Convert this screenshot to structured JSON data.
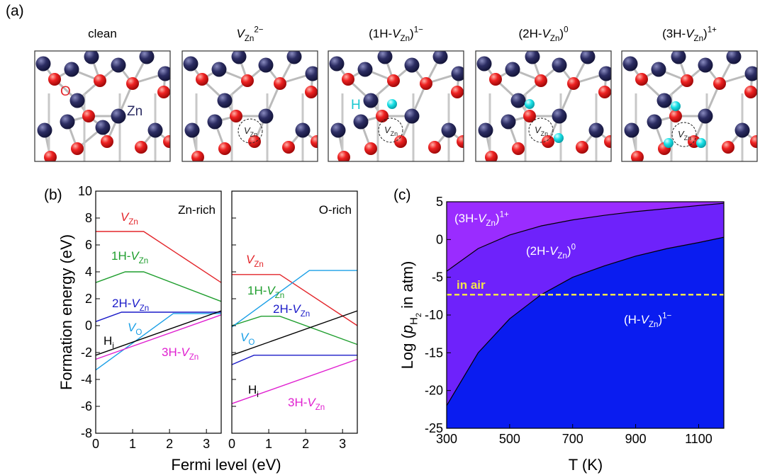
{
  "panel_labels": [
    "(a)",
    "(b)",
    "(c)"
  ],
  "structures": [
    {
      "title": [
        {
          "t": "clean"
        }
      ],
      "labels": [
        [
          {
            "t": "O"
          }
        ],
        [
          {
            "t": "Zn"
          }
        ]
      ]
    },
    {
      "title": [
        {
          "i": "V"
        },
        {
          "sub": "Zn"
        },
        {
          "sup": "2−"
        }
      ],
      "labels": [
        [
          {
            "i": "V"
          },
          {
            "sub": "Zn"
          }
        ]
      ]
    },
    {
      "title": [
        {
          "t": "(1H-"
        },
        {
          "i": "V"
        },
        {
          "sub": "Zn"
        },
        {
          "t": ")"
        },
        {
          "sup": "1−"
        }
      ],
      "labels": [
        [
          {
            "t": "H"
          }
        ],
        [
          {
            "i": "V"
          },
          {
            "sub": "Zn"
          }
        ]
      ]
    },
    {
      "title": [
        {
          "t": "(2H-"
        },
        {
          "i": "V"
        },
        {
          "sub": "Zn"
        },
        {
          "t": ")"
        },
        {
          "sup": "0"
        }
      ],
      "labels": [
        [
          {
            "i": "V"
          },
          {
            "sub": "Zn"
          }
        ]
      ]
    },
    {
      "title": [
        {
          "t": "(3H-"
        },
        {
          "i": "V"
        },
        {
          "sub": "Zn"
        },
        {
          "t": ")"
        },
        {
          "sup": "1+"
        }
      ],
      "labels": [
        [
          {
            "i": "V"
          },
          {
            "sub": "Zn"
          }
        ]
      ]
    }
  ],
  "chart_data": [
    {
      "type": "line",
      "label": "Zn-rich",
      "y_label": "Formation energy (eV)",
      "x_label": "Fermi level (eV)",
      "xlim": [
        0,
        3.4
      ],
      "xticks": [
        0,
        1,
        2,
        3
      ],
      "ylim": [
        -8,
        10
      ],
      "yticks": [
        -8,
        -6,
        -4,
        -2,
        0,
        2,
        4,
        6,
        8,
        10
      ],
      "show_ytick_labels": true,
      "series": [
        {
          "name": [
            {
              "i": "V"
            },
            {
              "sub": "Zn"
            }
          ],
          "color": "#e3262b",
          "x": [
            0,
            1.3,
            3.4
          ],
          "values": [
            7,
            7,
            3.2
          ]
        },
        {
          "name": [
            {
              "t": "1H-"
            },
            {
              "i": "V"
            },
            {
              "sub": "Zn"
            }
          ],
          "color": "#1f9e2e",
          "x": [
            0,
            0.8,
            1.3,
            3.4
          ],
          "values": [
            3.2,
            4,
            4,
            1.8
          ]
        },
        {
          "name": [
            {
              "t": "2H-"
            },
            {
              "i": "V"
            },
            {
              "sub": "Zn"
            }
          ],
          "color": "#1a1ac8",
          "x": [
            0,
            0.7,
            3.4
          ],
          "values": [
            0.3,
            1,
            1
          ]
        },
        {
          "name": [
            {
              "i": "V"
            },
            {
              "sub": "O"
            }
          ],
          "color": "#1a9fe6",
          "x": [
            0,
            2.1,
            3.4
          ],
          "values": [
            -3.3,
            0.9,
            0.9
          ]
        },
        {
          "name": [
            {
              "t": "H"
            },
            {
              "sub": "i"
            }
          ],
          "color": "#000000",
          "x": [
            0,
            3.4
          ],
          "values": [
            -2.2,
            1.1
          ]
        },
        {
          "name": [
            {
              "t": "3H-"
            },
            {
              "i": "V"
            },
            {
              "sub": "Zn"
            }
          ],
          "color": "#e020d0",
          "x": [
            0,
            3.4
          ],
          "values": [
            -2.5,
            0.8
          ]
        }
      ]
    },
    {
      "type": "line",
      "label": "O-rich",
      "xlim": [
        0,
        3.4
      ],
      "xticks": [
        0,
        1,
        2,
        3
      ],
      "ylim": [
        -8,
        10
      ],
      "yticks": [
        -8,
        -6,
        -4,
        -2,
        0,
        2,
        4,
        6,
        8,
        10
      ],
      "show_ytick_labels": false,
      "series": [
        {
          "name": [
            {
              "i": "V"
            },
            {
              "sub": "Zn"
            }
          ],
          "color": "#e3262b",
          "x": [
            0,
            1.3,
            3.4
          ],
          "values": [
            3.8,
            3.8,
            0
          ]
        },
        {
          "name": [
            {
              "t": "1H-"
            },
            {
              "i": "V"
            },
            {
              "sub": "Zn"
            }
          ],
          "color": "#1f9e2e",
          "x": [
            0,
            0.8,
            1.3,
            3.4
          ],
          "values": [
            0,
            0.7,
            0.7,
            -1.4
          ]
        },
        {
          "name": [
            {
              "t": "2H-"
            },
            {
              "i": "V"
            },
            {
              "sub": "Zn"
            }
          ],
          "color": "#1a1ac8",
          "x": [
            0,
            0.6,
            3.4
          ],
          "values": [
            -2.9,
            -2.2,
            -2.2
          ]
        },
        {
          "name": [
            {
              "i": "V"
            },
            {
              "sub": "O"
            }
          ],
          "color": "#1a9fe6",
          "x": [
            0,
            2.1,
            3.4
          ],
          "values": [
            -0.1,
            4.1,
            4.1
          ]
        },
        {
          "name": [
            {
              "t": "H"
            },
            {
              "sub": "i"
            }
          ],
          "color": "#000000",
          "x": [
            0,
            3.4
          ],
          "values": [
            -2.2,
            1.1
          ]
        },
        {
          "name": [
            {
              "t": "3H-"
            },
            {
              "i": "V"
            },
            {
              "sub": "Zn"
            }
          ],
          "color": "#e020d0",
          "x": [
            0,
            3.4
          ],
          "values": [
            -5.8,
            -2.5
          ]
        }
      ]
    },
    {
      "type": "phase",
      "x_label": "T (K)",
      "y_label": [
        {
          "t": "Log ("
        },
        {
          "i": "p"
        },
        {
          "sub": "H"
        },
        {
          "subsub": "2"
        },
        {
          "t": " in atm)"
        }
      ],
      "xlim": [
        300,
        1180
      ],
      "xticks": [
        300,
        500,
        700,
        900,
        1100
      ],
      "ylim": [
        -25,
        5
      ],
      "yticks": [
        -25,
        -20,
        -15,
        -10,
        -5,
        0,
        5
      ],
      "show_ytick_labels": true,
      "series": [
        {
          "color": "#000000",
          "x": [
            300,
            400,
            500,
            600,
            700,
            800,
            900,
            1000,
            1100,
            1180
          ],
          "values": [
            -4.2,
            -1.2,
            0.6,
            1.8,
            2.6,
            3.2,
            3.7,
            4.1,
            4.5,
            4.8
          ]
        },
        {
          "color": "#000000",
          "x": [
            300,
            400,
            500,
            600,
            700,
            800,
            900,
            1000,
            1100,
            1180
          ],
          "values": [
            -22,
            -15,
            -10.5,
            -7.3,
            -5,
            -3.5,
            -2.2,
            -1.2,
            -0.4,
            0.3
          ]
        }
      ],
      "regions": [
        {
          "name": [
            {
              "t": "(3H-"
            },
            {
              "i": "V"
            },
            {
              "sub": "Zn"
            },
            {
              "t": ")"
            },
            {
              "sup": "1+"
            }
          ],
          "color": "#9a2cff"
        },
        {
          "name": [
            {
              "t": "(2H-"
            },
            {
              "i": "V"
            },
            {
              "sub": "Zn"
            },
            {
              "t": ")"
            },
            {
              "sup": "0"
            }
          ],
          "color": "#6e22fb"
        },
        {
          "name": [
            {
              "t": "(H-"
            },
            {
              "i": "V"
            },
            {
              "sub": "Zn"
            },
            {
              "t": ")"
            },
            {
              "sup": "1−"
            }
          ],
          "color": "#0a1cf0"
        }
      ],
      "reference": {
        "name": "in air",
        "value": -7.3,
        "color": "#f2e44a"
      }
    }
  ]
}
